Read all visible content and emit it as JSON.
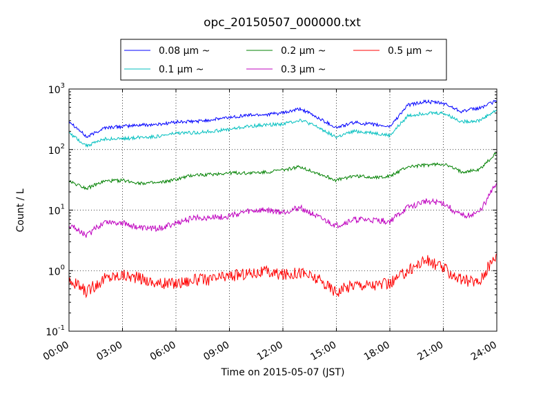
{
  "chart_data": {
    "type": "line",
    "title": "opc_20150507_000000.txt",
    "xlabel": "Time on 2015-05-07 (JST)",
    "ylabel": "Count / L",
    "x_ticks": [
      "00:00",
      "03:00",
      "06:00",
      "09:00",
      "12:00",
      "15:00",
      "18:00",
      "21:00",
      "24:00"
    ],
    "y_ticks": [
      {
        "value": 0.1,
        "base": "10",
        "exp": "-1"
      },
      {
        "value": 1,
        "base": "10",
        "exp": "0"
      },
      {
        "value": 10,
        "base": "10",
        "exp": "1"
      },
      {
        "value": 100,
        "base": "10",
        "exp": "2"
      },
      {
        "value": 1000,
        "base": "10",
        "exp": "3"
      }
    ],
    "xlim": [
      "00:00",
      "24:00"
    ],
    "ylim": [
      0.1,
      1000
    ],
    "yscale": "log",
    "grid": true,
    "legend_location": "top-center",
    "x": [
      "00:00",
      "01:00",
      "02:00",
      "03:00",
      "04:00",
      "05:00",
      "06:00",
      "07:00",
      "08:00",
      "09:00",
      "10:00",
      "11:00",
      "12:00",
      "13:00",
      "14:00",
      "15:00",
      "16:00",
      "17:00",
      "18:00",
      "19:00",
      "20:00",
      "21:00",
      "22:00",
      "23:00",
      "24:00"
    ],
    "series": [
      {
        "name": "0.08 μm ~",
        "color": "#0000ff",
        "values": [
          300,
          160,
          230,
          240,
          255,
          260,
          285,
          290,
          310,
          340,
          370,
          380,
          400,
          470,
          330,
          230,
          280,
          260,
          240,
          540,
          620,
          580,
          430,
          480,
          640
        ]
      },
      {
        "name": "0.1 μm ~",
        "color": "#00bfbf",
        "values": [
          190,
          115,
          150,
          150,
          160,
          165,
          185,
          190,
          200,
          215,
          240,
          255,
          265,
          310,
          230,
          160,
          200,
          190,
          170,
          360,
          400,
          400,
          290,
          300,
          450
        ]
      },
      {
        "name": "0.2 μm ~",
        "color": "#008000",
        "values": [
          30,
          23,
          30,
          31,
          28,
          28,
          32,
          38,
          39,
          41,
          41,
          42,
          46,
          52,
          40,
          31,
          37,
          35,
          36,
          52,
          55,
          58,
          43,
          46,
          90
        ]
      },
      {
        "name": "0.3 μm ~",
        "color": "#bf00bf",
        "values": [
          5.8,
          3.8,
          6.5,
          6.2,
          5.0,
          5.0,
          6.0,
          7.5,
          7.5,
          8.0,
          9.5,
          10.0,
          9.2,
          11.0,
          7.5,
          5.5,
          7.0,
          6.8,
          6.5,
          11.0,
          14.0,
          13.0,
          8.0,
          9.0,
          28
        ]
      },
      {
        "name": "0.5 μm ~",
        "color": "#ff0000",
        "values": [
          0.7,
          0.45,
          0.75,
          0.85,
          0.75,
          0.6,
          0.62,
          0.7,
          0.72,
          0.82,
          0.9,
          0.95,
          0.85,
          0.95,
          0.7,
          0.45,
          0.6,
          0.58,
          0.6,
          1.0,
          1.5,
          1.1,
          0.7,
          0.65,
          1.9
        ]
      }
    ]
  }
}
